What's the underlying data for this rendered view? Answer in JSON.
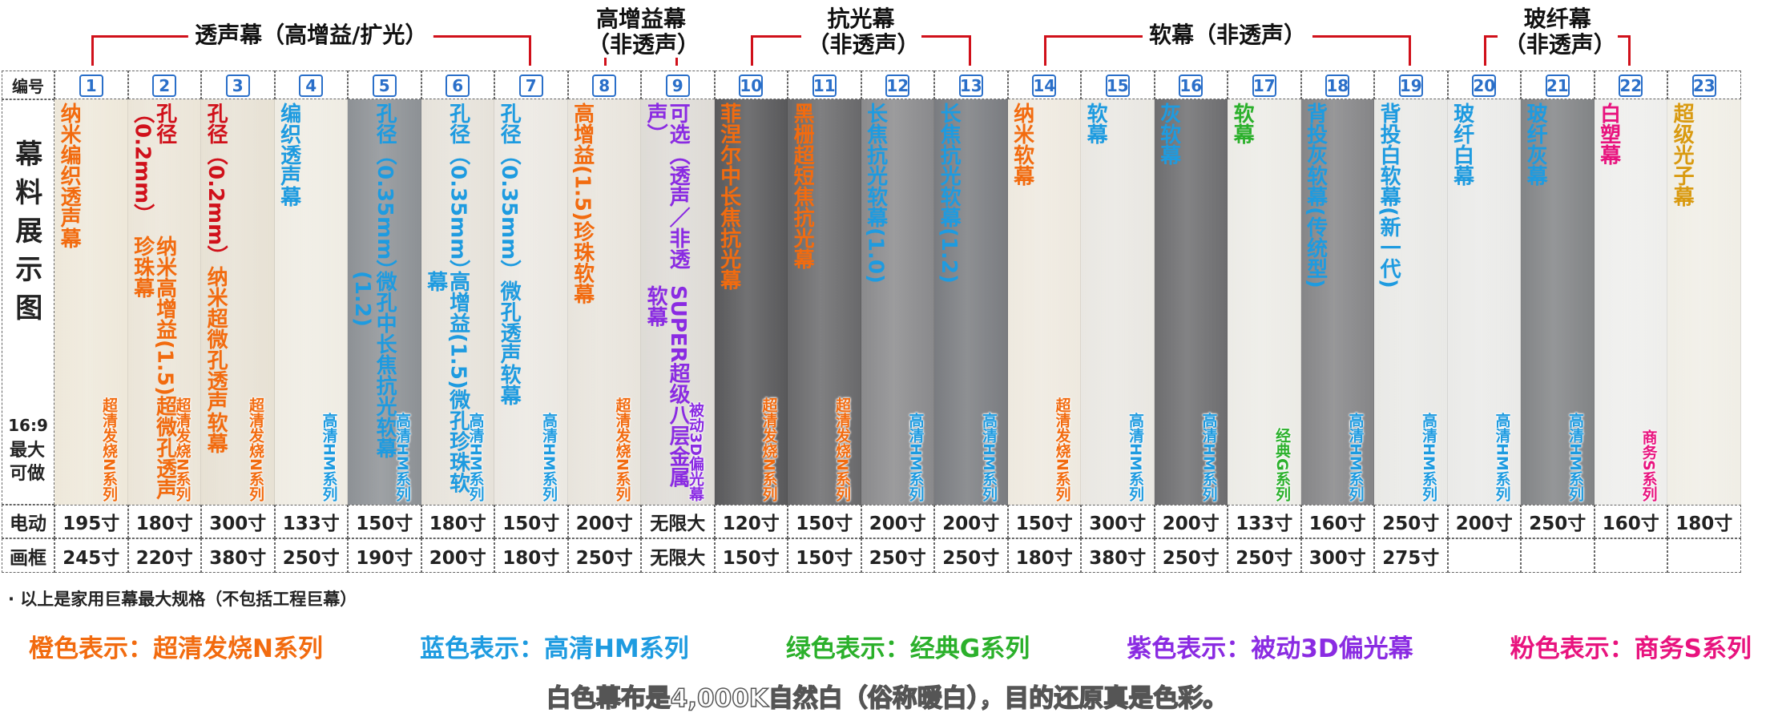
{
  "sections": [
    {
      "label": "透声幕（高增益/扩光）",
      "columns": [
        {
          "no": "1",
          "name": "纳米编织透声幕",
          "color": "#f26b0f",
          "series": "超清发烧N系列",
          "series_color": "#f26b0f",
          "bg": "#eee8da",
          "motor": "195寸",
          "frame": "245寸"
        },
        {
          "no": "2",
          "note": "孔径（0.2mm）",
          "note_color": "#d0101a",
          "name": "纳米高增益(1.5)超微孔透声珍珠幕",
          "color": "#f26b0f",
          "series": "超清发烧N系列",
          "series_color": "#f26b0f",
          "bg": "#ebe5d8",
          "motor": "180寸",
          "frame": "220寸"
        },
        {
          "no": "3",
          "note": "孔径（0.2mm）",
          "note_color": "#d0101a",
          "name": "纳米超微孔透声软幕",
          "color": "#f26b0f",
          "series": "超清发烧N系列",
          "series_color": "#f26b0f",
          "bg": "#e7e1d4",
          "motor": "300寸",
          "frame": "380寸"
        },
        {
          "no": "4",
          "name": "编织透声幕",
          "color": "#1e9be0",
          "series": "高清HM系列",
          "series_color": "#1e9be0",
          "bg": "#efece3",
          "motor": "133寸",
          "frame": "250寸"
        },
        {
          "no": "5",
          "note": "孔径（0.35mm）",
          "note_color": "#1e9be0",
          "name": "微孔中长焦抗光软幕(1.2)",
          "color": "#1e9be0",
          "series": "高清HM系列",
          "series_color": "#1e9be0",
          "bg": "#8d9195",
          "motor": "150寸",
          "frame": "190寸"
        },
        {
          "no": "6",
          "note": "孔径（0.35mm）",
          "note_color": "#1e9be0",
          "name": "高增益(1.5)微孔珍珠软幕",
          "color": "#1e9be0",
          "series": "高清HM系列",
          "series_color": "#1e9be0",
          "bg": "#e6e2da",
          "motor": "180寸",
          "frame": "200寸"
        },
        {
          "no": "7",
          "note": "孔径（0.35mm）",
          "note_color": "#1e9be0",
          "name": "微孔透声软幕",
          "color": "#1e9be0",
          "series": "高清HM系列",
          "series_color": "#1e9be0",
          "bg": "#ebe8e2",
          "motor": "150寸",
          "frame": "180寸"
        }
      ]
    },
    {
      "label": "高增益幕（非透声）",
      "columns": [
        {
          "no": "8",
          "name": "高增益(1.5)珍珠软幕",
          "color": "#f26b0f",
          "series": "超清发烧N系列",
          "series_color": "#f26b0f",
          "bg": "#e8e4dc",
          "motor": "200寸",
          "frame": "250寸"
        },
        {
          "no": "9",
          "note": "可选（透声／非透声）",
          "note_color": "#8a2be2",
          "name": "SUPER超级八层金属软幕",
          "color": "#8a2be2",
          "series": "被动3D偏光幕",
          "series_color": "#8a2be2",
          "bg": "#dedbd6",
          "motor": "无限大",
          "frame": "无限大"
        }
      ]
    },
    {
      "label": "抗光幕（非透声）",
      "columns": [
        {
          "no": "10",
          "name": "菲涅尔中长焦抗光幕",
          "color": "#f26b0f",
          "series": "超清发烧N系列",
          "series_color": "#f26b0f",
          "bg": "#59595b",
          "motor": "120寸",
          "frame": "150寸"
        },
        {
          "no": "11",
          "name": "黑栅超短焦抗光幕",
          "color": "#f26b0f",
          "series": "超清发烧N系列",
          "series_color": "#f26b0f",
          "bg": "#69696b",
          "motor": "150寸",
          "frame": "150寸"
        },
        {
          "no": "12",
          "name": "长焦抗光软幕(1.0)",
          "color": "#1e9be0",
          "series": "高清HM系列",
          "series_color": "#1e9be0",
          "bg": "#8a8a8c",
          "motor": "200寸",
          "frame": "250寸"
        },
        {
          "no": "13",
          "name": "长焦抗光软幕(1.2)",
          "color": "#1e9be0",
          "series": "高清HM系列",
          "series_color": "#1e9be0",
          "bg": "#7a7c80",
          "motor": "200寸",
          "frame": "250寸"
        }
      ]
    },
    {
      "label": "软幕（非透声）",
      "columns": [
        {
          "no": "14",
          "name": "纳米软幕",
          "color": "#f26b0f",
          "series": "超清发烧N系列",
          "series_color": "#f26b0f",
          "bg": "#eee9df",
          "motor": "150寸",
          "frame": "180寸"
        },
        {
          "no": "15",
          "name": "软幕",
          "color": "#1e9be0",
          "series": "高清HM系列",
          "series_color": "#1e9be0",
          "bg": "#e9e7e2",
          "motor": "300寸",
          "frame": "380寸"
        },
        {
          "no": "16",
          "name": "灰软幕",
          "color": "#1e9be0",
          "series": "高清HM系列",
          "series_color": "#1e9be0",
          "bg": "#6d6d6f",
          "motor": "200寸",
          "frame": "250寸"
        },
        {
          "no": "17",
          "name": "软幕",
          "color": "#2bb02b",
          "series": "经典G系列",
          "series_color": "#2bb02b",
          "bg": "#ecebe6",
          "motor": "133寸",
          "frame": "250寸"
        },
        {
          "no": "18",
          "name": "背投灰软幕(传统型)",
          "color": "#1e9be0",
          "series": "高清HM系列",
          "series_color": "#1e9be0",
          "bg": "#858587",
          "motor": "160寸",
          "frame": "300寸"
        },
        {
          "no": "19",
          "name": "背投白软幕(新一代)",
          "color": "#1e9be0",
          "series": "高清HM系列",
          "series_color": "#1e9be0",
          "bg": "#e9e9e6",
          "motor": "250寸",
          "frame": "275寸"
        }
      ]
    },
    {
      "label": "玻纤幕（非透声）",
      "columns": [
        {
          "no": "20",
          "name": "玻纤白幕",
          "color": "#1e9be0",
          "series": "高清HM系列",
          "series_color": "#1e9be0",
          "bg": "#eaeae8",
          "motor": "200寸",
          "frame": null
        },
        {
          "no": "21",
          "name": "玻纤灰幕",
          "color": "#1e9be0",
          "series": "高清HM系列",
          "series_color": "#1e9be0",
          "bg": "#828486",
          "motor": "250寸",
          "frame": null
        },
        {
          "no": "22",
          "name": "白塑幕",
          "color": "#e8137e",
          "series": "商务S系列",
          "series_color": "#e8137e",
          "bg": "#eeeeec",
          "motor": "160寸",
          "frame": null
        }
      ]
    },
    {
      "label": null,
      "columns": [
        {
          "no": "23",
          "name": "超级光子幕",
          "color": "#d99a10",
          "bg": "#f0eee6",
          "motor": "180寸",
          "frame": null
        }
      ]
    }
  ],
  "row_labels": {
    "number": "编号",
    "display": "幕料展示图",
    "ratio": "16:9",
    "max": "最大可做",
    "motor": "电动",
    "frame": "画框"
  },
  "note": "· 以上是家用巨幕最大规格（不包括工程巨幕）",
  "legend": [
    {
      "label": "橙色表示：超清发烧N系列",
      "color": "#f26b0f"
    },
    {
      "label": "蓝色表示：高清HM系列",
      "color": "#1e9be0"
    },
    {
      "label": "绿色表示：经典G系列",
      "color": "#2bb02b"
    },
    {
      "label": "紫色表示：被动3D偏光幕",
      "color": "#8a2be2"
    },
    {
      "label": "粉色表示：商务S系列",
      "color": "#e8137e"
    }
  ],
  "footer": "白色幕布是4,000K自然白（俗称暖白），目的还原真是色彩。"
}
